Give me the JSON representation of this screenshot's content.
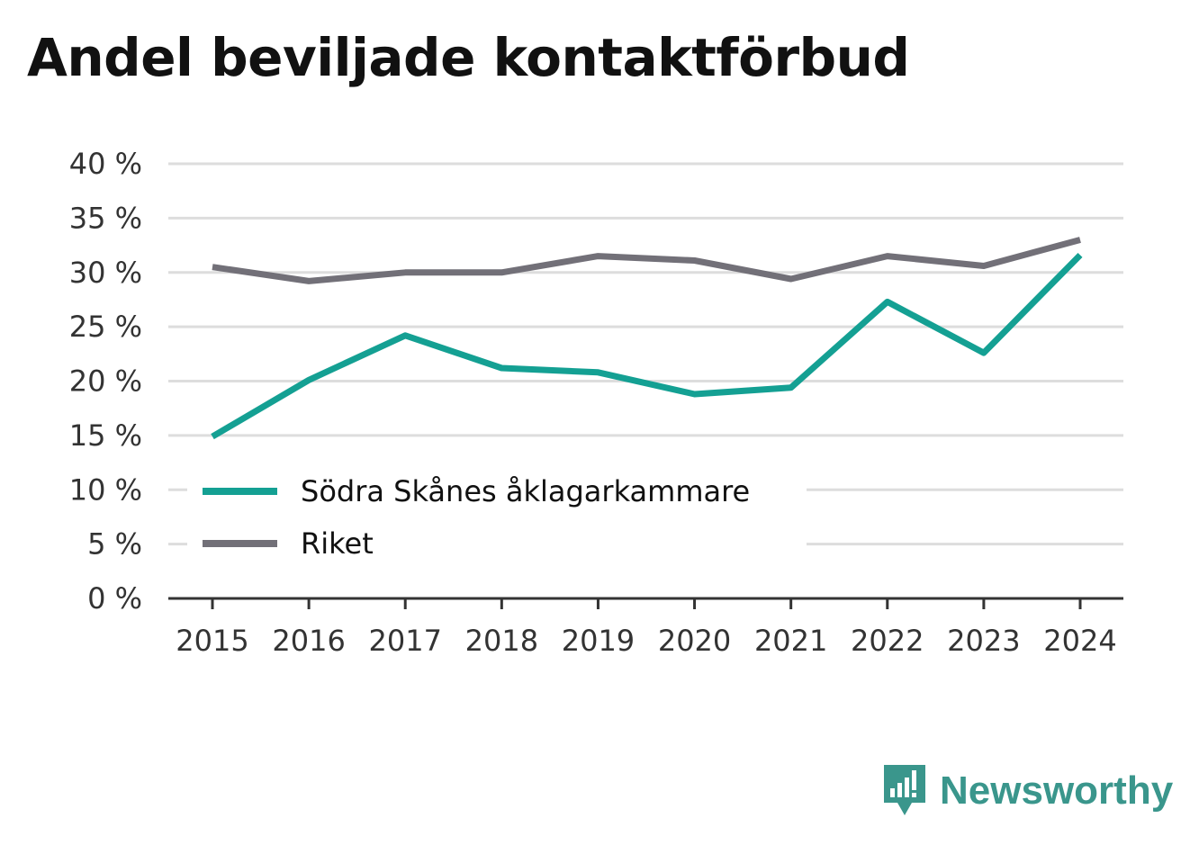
{
  "title": "Andel beviljade kontaktförbud",
  "brand": {
    "name": "Newsworthy",
    "icon": "newsworthy-logo-icon",
    "color": "#3a968c"
  },
  "chart_data": {
    "type": "line",
    "title": "Andel beviljade kontaktförbud",
    "xlabel": "",
    "ylabel": "",
    "categories": [
      "2015",
      "2016",
      "2017",
      "2018",
      "2019",
      "2020",
      "2021",
      "2022",
      "2023",
      "2024"
    ],
    "y_ticks": [
      "0 %",
      "5 %",
      "10 %",
      "15 %",
      "20 %",
      "25 %",
      "30 %",
      "35 %",
      "40 %"
    ],
    "ylim": [
      0,
      40
    ],
    "grid": true,
    "legend_position": "bottom-left",
    "series": [
      {
        "name": "Södra Skånes åklagarkammare",
        "color": "#14a093",
        "values": [
          14.9,
          20.1,
          24.2,
          21.2,
          20.8,
          18.8,
          19.4,
          27.3,
          22.6,
          31.6
        ]
      },
      {
        "name": "Riket",
        "color": "#727078",
        "values": [
          30.5,
          29.2,
          30.0,
          30.0,
          31.5,
          31.1,
          29.4,
          31.5,
          30.6,
          33.0
        ]
      }
    ]
  }
}
